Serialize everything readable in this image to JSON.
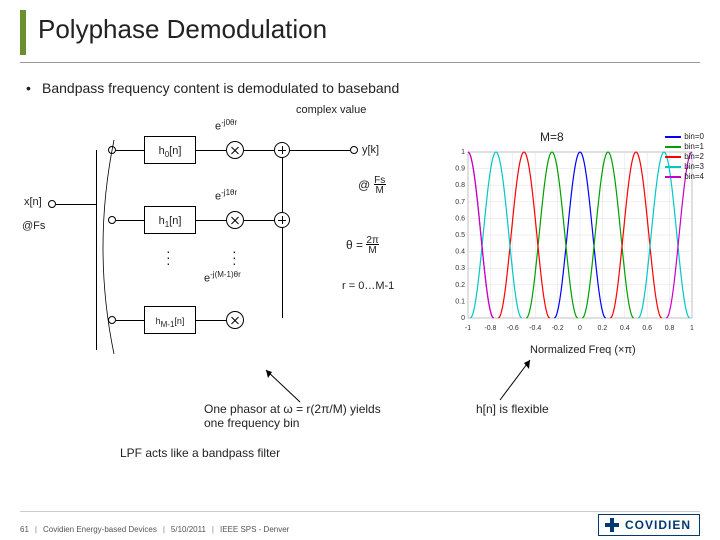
{
  "accent_color": "#6a8f2f",
  "title": "Polyphase Demodulation",
  "bullet": "Bandpass frequency content is demodulated to baseband",
  "diagram": {
    "input_label": "x[n]",
    "rate_label": "@Fs",
    "filters": [
      "h₀[n]",
      "h₁[n]",
      "h_{M-1}[n]"
    ],
    "phasors": [
      "e^{-j0θr}",
      "e^{-j1θr}",
      "e^{-j(M-1)θr}"
    ],
    "complex_value": "complex value",
    "output_label": "y[k]",
    "output_rate": "@ Fs / M",
    "theta_def": "θ = 2π / M",
    "r_def": "r = 0…M-1"
  },
  "chart": {
    "title": "M=8",
    "xlabel": "Normalized Freq (×π)",
    "xlim": [
      -1,
      1
    ],
    "xticks": [
      -1,
      -0.8,
      -0.6,
      -0.4,
      -0.2,
      0,
      0.2,
      0.4,
      0.6,
      0.8,
      1
    ],
    "ylim": [
      0,
      1
    ],
    "yticks": [
      0,
      0.1,
      0.2,
      0.3,
      0.4,
      0.5,
      0.6,
      0.7,
      0.8,
      0.9,
      1
    ],
    "series": [
      {
        "name": "bin=0",
        "color": "#0000ff",
        "center": 0.0
      },
      {
        "name": "bin=1",
        "color": "#00a000",
        "center": 0.25
      },
      {
        "name": "bin=2",
        "color": "#ff0000",
        "center": 0.5
      },
      {
        "name": "bin=3",
        "color": "#00c8c8",
        "center": 0.75
      },
      {
        "name": "bin=4",
        "color": "#c800c8",
        "center": 1.0
      }
    ],
    "halfwidth": 0.23,
    "tick_fontsize": 7,
    "grid_color": "#d8d8d8",
    "axis_color": "#808080",
    "plot_bg": "#ffffff"
  },
  "anno_phasor": "One phasor at ω = r(2π/M) yields one frequency bin",
  "anno_lpf": "LPF acts like a bandpass filter",
  "anno_flex": "h[n] is flexible",
  "footer": {
    "page": "61",
    "org": "Covidien Energy-based Devices",
    "date": "5/10/2011",
    "venue": "IEEE SPS - Denver",
    "brand": "COVIDIEN"
  }
}
